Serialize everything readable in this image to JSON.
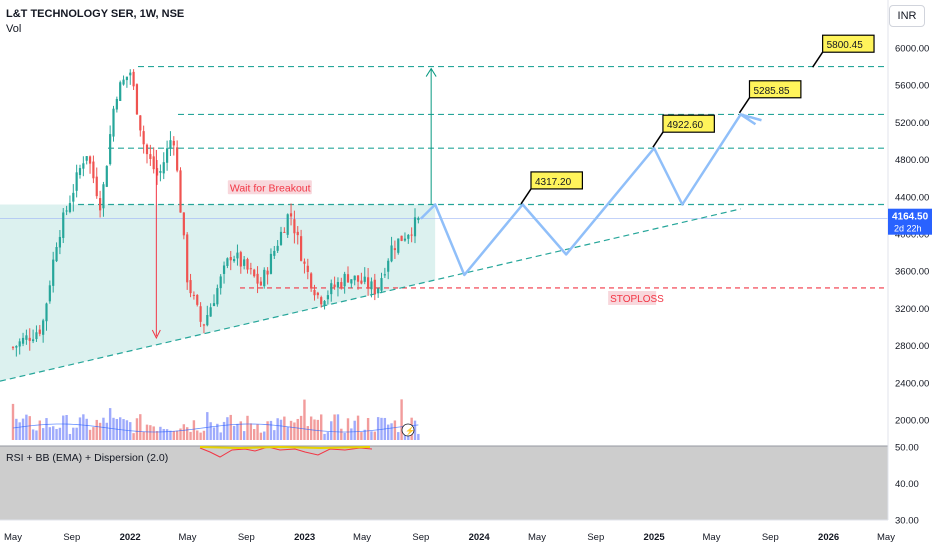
{
  "header": {
    "title": "L&T TECHNOLOGY SER, 1W, NSE",
    "vol_label": "Vol",
    "currency": "INR"
  },
  "rsi_label": "RSI + BB (EMA) + Dispersion (2.0)",
  "price_label": {
    "value": "4164.50",
    "countdown": "2d 22h"
  },
  "colors": {
    "up": "#26a69a",
    "down": "#ef5350",
    "accent": "#2962ff",
    "projection": "#90bff9",
    "target_line": "#26a69a",
    "stoploss": "#f23645",
    "note_bg": "#fff45b"
  },
  "chart_data": {
    "type": "candlestick",
    "title": "L&T TECHNOLOGY SER, 1W, NSE",
    "y_axis": {
      "ticks": [
        2000,
        2400,
        2800,
        3200,
        3600,
        4000,
        4400,
        4800,
        5200,
        5600,
        6000
      ],
      "range": [
        1700,
        6450
      ]
    },
    "x_axis": {
      "ticks": [
        "May",
        "Sep",
        "2022",
        "May",
        "Sep",
        "2023",
        "May",
        "Sep",
        "2024",
        "May",
        "Sep",
        "2025",
        "May",
        "Sep",
        "2026",
        "May"
      ]
    },
    "price_keypoints": [
      {
        "date": "2021-05",
        "price": 2780
      },
      {
        "date": "2021-07",
        "price": 3000
      },
      {
        "date": "2021-08",
        "price": 3950
      },
      {
        "date": "2021-10",
        "price": 4900
      },
      {
        "date": "2021-11",
        "price": 4300
      },
      {
        "date": "2021-12",
        "price": 5500
      },
      {
        "date": "2022-01",
        "price": 5750
      },
      {
        "date": "2022-02",
        "price": 4900
      },
      {
        "date": "2022-03",
        "price": 4600
      },
      {
        "date": "2022-04",
        "price": 5100
      },
      {
        "date": "2022-05",
        "price": 3500
      },
      {
        "date": "2022-06",
        "price": 3000
      },
      {
        "date": "2022-08",
        "price": 3800
      },
      {
        "date": "2022-10",
        "price": 3450
      },
      {
        "date": "2022-12",
        "price": 4250
      },
      {
        "date": "2023-01",
        "price": 3650
      },
      {
        "date": "2023-02",
        "price": 3300
      },
      {
        "date": "2023-04",
        "price": 3550
      },
      {
        "date": "2023-06",
        "price": 3400
      },
      {
        "date": "2023-07",
        "price": 3850
      },
      {
        "date": "2023-09",
        "price": 4164.5
      }
    ],
    "last_price": 4164.5,
    "levels": {
      "breakout": 4317.2,
      "target_1": 4922.6,
      "target_2": 5285.85,
      "target_3": 5800.45,
      "stoploss": 3420
    },
    "trendline": {
      "from": {
        "date": "2021-05",
        "price": 2450
      },
      "to": {
        "date": "2025-07",
        "price": 4270
      }
    },
    "projection_path": [
      {
        "date": "2023-09",
        "price": 4164.5
      },
      {
        "date": "2023-10",
        "price": 4317.2
      },
      {
        "date": "2023-12",
        "price": 3560
      },
      {
        "date": "2024-04",
        "price": 4317.2
      },
      {
        "date": "2024-07",
        "price": 3780
      },
      {
        "date": "2025-01",
        "price": 4922.6
      },
      {
        "date": "2025-03",
        "price": 4317.2
      },
      {
        "date": "2025-07",
        "price": 5285.85
      },
      {
        "date": "2025-08",
        "price": 5180
      }
    ],
    "annotations": [
      {
        "text": "Wait for Breakout",
        "date": "2022-12",
        "price": 4470
      },
      {
        "text": "4317.20",
        "date": "2024-05",
        "price": 4560
      },
      {
        "text": "4922.60",
        "date": "2025-02",
        "price": 5170
      },
      {
        "text": "5285.85",
        "date": "2025-08",
        "price": 5540
      },
      {
        "text": "5800.45",
        "date": "2026-01",
        "price": 6030
      },
      {
        "text": "STOPLOSS",
        "date": "2024-10",
        "price": 3280
      }
    ],
    "rsi": {
      "ticks": [
        50,
        40,
        30
      ]
    }
  }
}
